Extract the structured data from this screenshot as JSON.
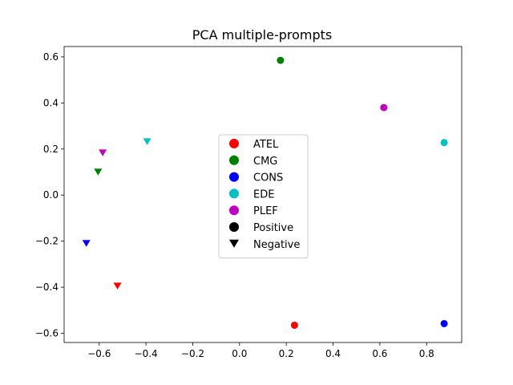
{
  "chart_data": {
    "type": "scatter",
    "title": "PCA multiple-prompts",
    "xlabel": "",
    "ylabel": "",
    "xlim": [
      -0.75,
      0.95
    ],
    "ylim": [
      -0.64,
      0.645
    ],
    "xticks": [
      -0.6,
      -0.4,
      -0.2,
      0.0,
      0.2,
      0.4,
      0.6,
      0.8
    ],
    "xtick_labels": [
      "−0.6",
      "−0.4",
      "−0.2",
      "0.0",
      "0.2",
      "0.4",
      "0.6",
      "0.8"
    ],
    "yticks": [
      -0.6,
      -0.4,
      -0.2,
      0.0,
      0.2,
      0.4,
      0.6
    ],
    "ytick_labels": [
      "−0.6",
      "−0.4",
      "−0.2",
      "0.0",
      "0.2",
      "0.4",
      "0.6"
    ],
    "grid": false,
    "legend_position": "center",
    "series": [
      {
        "name": "ATEL",
        "color": "#ff0000",
        "points": [
          {
            "x": 0.235,
            "y": -0.565,
            "kind": "Positive"
          },
          {
            "x": -0.522,
            "y": -0.395,
            "kind": "Negative"
          }
        ]
      },
      {
        "name": "CMG",
        "color": "#008000",
        "points": [
          {
            "x": 0.175,
            "y": 0.585,
            "kind": "Positive"
          },
          {
            "x": -0.605,
            "y": 0.1,
            "kind": "Negative"
          }
        ]
      },
      {
        "name": "CONS",
        "color": "#0000ff",
        "points": [
          {
            "x": 0.875,
            "y": -0.558,
            "kind": "Positive"
          },
          {
            "x": -0.655,
            "y": -0.21,
            "kind": "Negative"
          }
        ]
      },
      {
        "name": "EDE",
        "color": "#00bfbf",
        "points": [
          {
            "x": 0.875,
            "y": 0.228,
            "kind": "Positive"
          },
          {
            "x": -0.395,
            "y": 0.232,
            "kind": "Negative"
          }
        ]
      },
      {
        "name": "PLEF",
        "color": "#bf00bf",
        "points": [
          {
            "x": 0.617,
            "y": 0.38,
            "kind": "Positive"
          },
          {
            "x": -0.585,
            "y": 0.183,
            "kind": "Negative"
          }
        ]
      }
    ],
    "marker_legend": [
      {
        "name": "Positive",
        "marker": "circle",
        "color": "#000000"
      },
      {
        "name": "Negative",
        "marker": "triangle-down",
        "color": "#000000"
      }
    ]
  }
}
